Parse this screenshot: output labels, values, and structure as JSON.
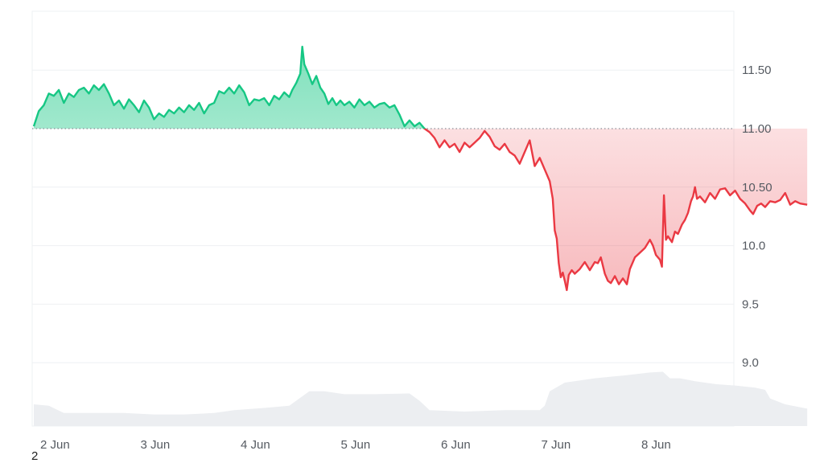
{
  "footnote": "2",
  "chart_data": {
    "type": "area",
    "baseline": 11.0,
    "ylim": [
      8.5,
      12.0
    ],
    "y_ticks": [
      11.5,
      11.0,
      10.5,
      10.0,
      9.5,
      9.0
    ],
    "y_tick_labels": [
      "11.50",
      "11.00",
      "10.50",
      "10.0",
      "9.5",
      "9.0"
    ],
    "x_tick_labels": [
      "2 Jun",
      "3 Jun",
      "4 Jun",
      "5 Jun",
      "6 Jun",
      "7 Jun",
      "8 Jun"
    ],
    "x_range_days": [
      0,
      6.72
    ],
    "colors": {
      "above": "#16c784",
      "below": "#ea3943",
      "volume": "#eceef1",
      "grid": "#eef0f3",
      "axis_text": "#555a61"
    },
    "series": [
      {
        "values": [
          [
            0.0,
            11.02
          ],
          [
            0.05,
            11.15
          ],
          [
            0.1,
            11.2
          ],
          [
            0.15,
            11.3
          ],
          [
            0.2,
            11.28
          ],
          [
            0.25,
            11.33
          ],
          [
            0.3,
            11.22
          ],
          [
            0.35,
            11.3
          ],
          [
            0.4,
            11.27
          ],
          [
            0.45,
            11.33
          ],
          [
            0.5,
            11.35
          ],
          [
            0.55,
            11.3
          ],
          [
            0.6,
            11.37
          ],
          [
            0.65,
            11.33
          ],
          [
            0.7,
            11.38
          ],
          [
            0.75,
            11.3
          ],
          [
            0.8,
            11.2
          ],
          [
            0.85,
            11.24
          ],
          [
            0.9,
            11.17
          ],
          [
            0.95,
            11.25
          ],
          [
            1.0,
            11.2
          ],
          [
            1.05,
            11.14
          ],
          [
            1.1,
            11.24
          ],
          [
            1.15,
            11.18
          ],
          [
            1.2,
            11.08
          ],
          [
            1.25,
            11.13
          ],
          [
            1.3,
            11.1
          ],
          [
            1.35,
            11.16
          ],
          [
            1.4,
            11.13
          ],
          [
            1.45,
            11.18
          ],
          [
            1.5,
            11.14
          ],
          [
            1.55,
            11.2
          ],
          [
            1.6,
            11.16
          ],
          [
            1.65,
            11.22
          ],
          [
            1.7,
            11.13
          ],
          [
            1.75,
            11.2
          ],
          [
            1.8,
            11.22
          ],
          [
            1.85,
            11.32
          ],
          [
            1.9,
            11.3
          ],
          [
            1.95,
            11.35
          ],
          [
            2.0,
            11.3
          ],
          [
            2.05,
            11.37
          ],
          [
            2.1,
            11.31
          ],
          [
            2.15,
            11.2
          ],
          [
            2.2,
            11.25
          ],
          [
            2.25,
            11.24
          ],
          [
            2.3,
            11.26
          ],
          [
            2.35,
            11.2
          ],
          [
            2.4,
            11.28
          ],
          [
            2.45,
            11.25
          ],
          [
            2.5,
            11.31
          ],
          [
            2.55,
            11.27
          ],
          [
            2.58,
            11.33
          ],
          [
            2.62,
            11.39
          ],
          [
            2.66,
            11.47
          ],
          [
            2.68,
            11.7
          ],
          [
            2.7,
            11.55
          ],
          [
            2.74,
            11.47
          ],
          [
            2.78,
            11.38
          ],
          [
            2.82,
            11.45
          ],
          [
            2.86,
            11.35
          ],
          [
            2.9,
            11.3
          ],
          [
            2.94,
            11.21
          ],
          [
            2.98,
            11.26
          ],
          [
            3.02,
            11.2
          ],
          [
            3.06,
            11.24
          ],
          [
            3.1,
            11.2
          ],
          [
            3.15,
            11.23
          ],
          [
            3.2,
            11.18
          ],
          [
            3.25,
            11.25
          ],
          [
            3.3,
            11.2
          ],
          [
            3.35,
            11.23
          ],
          [
            3.4,
            11.18
          ],
          [
            3.45,
            11.21
          ],
          [
            3.5,
            11.22
          ],
          [
            3.55,
            11.18
          ],
          [
            3.6,
            11.2
          ],
          [
            3.65,
            11.12
          ],
          [
            3.7,
            11.02
          ],
          [
            3.75,
            11.07
          ],
          [
            3.8,
            11.02
          ],
          [
            3.85,
            11.05
          ],
          [
            3.9,
            11.0
          ],
          [
            3.95,
            10.97
          ],
          [
            4.0,
            10.92
          ],
          [
            4.05,
            10.84
          ],
          [
            4.1,
            10.9
          ],
          [
            4.15,
            10.84
          ],
          [
            4.2,
            10.87
          ],
          [
            4.25,
            10.8
          ],
          [
            4.3,
            10.88
          ],
          [
            4.35,
            10.84
          ],
          [
            4.4,
            10.88
          ],
          [
            4.45,
            10.92
          ],
          [
            4.5,
            10.98
          ],
          [
            4.55,
            10.93
          ],
          [
            4.6,
            10.85
          ],
          [
            4.65,
            10.82
          ],
          [
            4.7,
            10.87
          ],
          [
            4.75,
            10.8
          ],
          [
            4.8,
            10.77
          ],
          [
            4.85,
            10.7
          ],
          [
            4.9,
            10.8
          ],
          [
            4.95,
            10.9
          ],
          [
            5.0,
            10.68
          ],
          [
            5.05,
            10.75
          ],
          [
            5.1,
            10.65
          ],
          [
            5.15,
            10.55
          ],
          [
            5.18,
            10.4
          ],
          [
            5.2,
            10.13
          ],
          [
            5.22,
            10.06
          ],
          [
            5.24,
            9.85
          ],
          [
            5.26,
            9.73
          ],
          [
            5.28,
            9.77
          ],
          [
            5.3,
            9.7
          ],
          [
            5.32,
            9.62
          ],
          [
            5.34,
            9.75
          ],
          [
            5.37,
            9.79
          ],
          [
            5.4,
            9.76
          ],
          [
            5.45,
            9.8
          ],
          [
            5.5,
            9.86
          ],
          [
            5.55,
            9.79
          ],
          [
            5.6,
            9.86
          ],
          [
            5.63,
            9.85
          ],
          [
            5.66,
            9.9
          ],
          [
            5.7,
            9.76
          ],
          [
            5.73,
            9.7
          ],
          [
            5.76,
            9.68
          ],
          [
            5.8,
            9.74
          ],
          [
            5.84,
            9.67
          ],
          [
            5.88,
            9.72
          ],
          [
            5.92,
            9.67
          ],
          [
            5.95,
            9.8
          ],
          [
            6.0,
            9.9
          ],
          [
            6.05,
            9.94
          ],
          [
            6.1,
            9.98
          ],
          [
            6.15,
            10.05
          ],
          [
            6.18,
            10.0
          ],
          [
            6.21,
            9.92
          ],
          [
            6.25,
            9.88
          ],
          [
            6.27,
            9.82
          ],
          [
            6.29,
            10.43
          ],
          [
            6.31,
            10.05
          ],
          [
            6.33,
            10.08
          ],
          [
            6.37,
            10.03
          ],
          [
            6.4,
            10.12
          ],
          [
            6.43,
            10.1
          ],
          [
            6.47,
            10.18
          ],
          [
            6.5,
            10.22
          ],
          [
            6.53,
            10.28
          ],
          [
            6.56,
            10.38
          ],
          [
            6.58,
            10.42
          ],
          [
            6.6,
            10.5
          ],
          [
            6.62,
            10.4
          ],
          [
            6.65,
            10.42
          ],
          [
            6.7,
            10.37
          ],
          [
            6.75,
            10.45
          ],
          [
            6.8,
            10.4
          ],
          [
            6.85,
            10.48
          ],
          [
            6.9,
            10.49
          ],
          [
            6.95,
            10.43
          ],
          [
            7.0,
            10.47
          ],
          [
            7.05,
            10.4
          ],
          [
            7.1,
            10.36
          ],
          [
            7.15,
            10.3
          ],
          [
            7.18,
            10.27
          ],
          [
            7.22,
            10.34
          ],
          [
            7.26,
            10.36
          ],
          [
            7.3,
            10.33
          ],
          [
            7.35,
            10.38
          ],
          [
            7.4,
            10.37
          ],
          [
            7.45,
            10.39
          ],
          [
            7.5,
            10.45
          ],
          [
            7.55,
            10.35
          ],
          [
            7.6,
            10.38
          ],
          [
            7.65,
            10.36
          ],
          [
            7.72,
            10.35
          ]
        ]
      }
    ],
    "volume": [
      [
        0.0,
        0.3
      ],
      [
        0.15,
        0.28
      ],
      [
        0.3,
        0.18
      ],
      [
        0.6,
        0.18
      ],
      [
        0.9,
        0.18
      ],
      [
        1.2,
        0.16
      ],
      [
        1.5,
        0.16
      ],
      [
        1.8,
        0.18
      ],
      [
        2.0,
        0.22
      ],
      [
        2.3,
        0.25
      ],
      [
        2.55,
        0.28
      ],
      [
        2.65,
        0.38
      ],
      [
        2.75,
        0.48
      ],
      [
        2.9,
        0.48
      ],
      [
        3.1,
        0.44
      ],
      [
        3.4,
        0.44
      ],
      [
        3.75,
        0.45
      ],
      [
        3.85,
        0.35
      ],
      [
        3.95,
        0.22
      ],
      [
        4.3,
        0.2
      ],
      [
        4.7,
        0.22
      ],
      [
        5.05,
        0.22
      ],
      [
        5.1,
        0.28
      ],
      [
        5.15,
        0.48
      ],
      [
        5.3,
        0.6
      ],
      [
        5.6,
        0.66
      ],
      [
        5.9,
        0.7
      ],
      [
        6.15,
        0.74
      ],
      [
        6.28,
        0.75
      ],
      [
        6.35,
        0.66
      ],
      [
        6.45,
        0.66
      ],
      [
        6.6,
        0.62
      ],
      [
        6.8,
        0.58
      ],
      [
        7.0,
        0.56
      ],
      [
        7.2,
        0.53
      ],
      [
        7.3,
        0.5
      ],
      [
        7.35,
        0.38
      ],
      [
        7.5,
        0.3
      ],
      [
        7.72,
        0.24
      ]
    ]
  }
}
